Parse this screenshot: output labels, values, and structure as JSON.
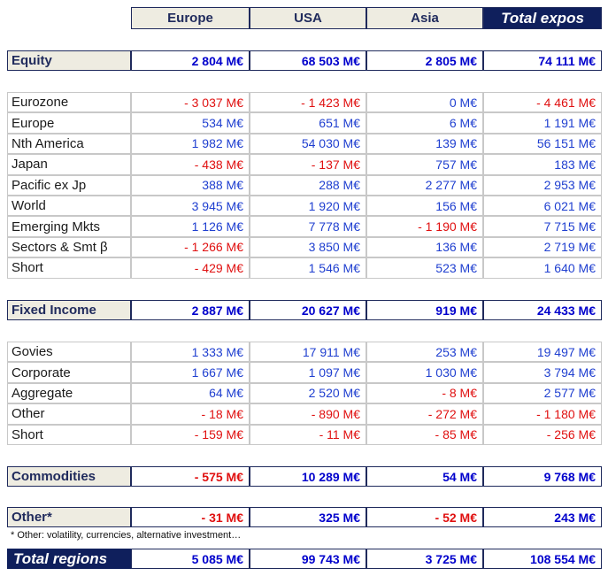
{
  "header": {
    "columns": [
      "Europe",
      "USA",
      "Asia",
      "Total expos"
    ]
  },
  "sections": [
    {
      "label": "Equity",
      "values": [
        "2 804 M€",
        "68 503 M€",
        "2 805 M€",
        "74 111 M€"
      ],
      "rows": [
        {
          "label": "Eurozone",
          "values": [
            "- 3 037 M€",
            "- 1 423 M€",
            "0 M€",
            "- 4 461 M€"
          ]
        },
        {
          "label": "Europe",
          "values": [
            "534 M€",
            "651 M€",
            "6 M€",
            "1 191 M€"
          ]
        },
        {
          "label": "Nth America",
          "values": [
            "1 982 M€",
            "54 030 M€",
            "139 M€",
            "56 151 M€"
          ]
        },
        {
          "label": "Japan",
          "values": [
            "- 438 M€",
            "- 137 M€",
            "757 M€",
            "183 M€"
          ]
        },
        {
          "label": "Pacific ex Jp",
          "values": [
            "388 M€",
            "288 M€",
            "2 277 M€",
            "2 953 M€"
          ]
        },
        {
          "label": "World",
          "values": [
            "3 945 M€",
            "1 920 M€",
            "156 M€",
            "6 021 M€"
          ]
        },
        {
          "label": "Emerging Mkts",
          "values": [
            "1 126 M€",
            "7 778 M€",
            "- 1 190 M€",
            "7 715 M€"
          ]
        },
        {
          "label": "Sectors & Smt β",
          "values": [
            "- 1 266 M€",
            "3 850 M€",
            "136 M€",
            "2 719 M€"
          ]
        },
        {
          "label": "Short",
          "values": [
            "- 429 M€",
            "1 546 M€",
            "523 M€",
            "1 640 M€"
          ]
        }
      ]
    },
    {
      "label": "Fixed Income",
      "values": [
        "2 887 M€",
        "20 627 M€",
        "919 M€",
        "24 433 M€"
      ],
      "rows": [
        {
          "label": "Govies",
          "values": [
            "1 333 M€",
            "17 911 M€",
            "253 M€",
            "19 497 M€"
          ]
        },
        {
          "label": "Corporate",
          "values": [
            "1 667 M€",
            "1 097 M€",
            "1 030 M€",
            "3 794 M€"
          ]
        },
        {
          "label": "Aggregate",
          "values": [
            "64 M€",
            "2 520 M€",
            "- 8 M€",
            "2 577 M€"
          ]
        },
        {
          "label": "Other",
          "values": [
            "- 18 M€",
            "- 890 M€",
            "- 272 M€",
            "- 1 180 M€"
          ]
        },
        {
          "label": "Short",
          "values": [
            "- 159 M€",
            "- 11 M€",
            "- 85 M€",
            "- 256 M€"
          ]
        }
      ]
    },
    {
      "label": "Commodities",
      "values": [
        "- 575 M€",
        "10 289 M€",
        "54 M€",
        "9 768 M€"
      ],
      "rows": []
    },
    {
      "label": "Other*",
      "values": [
        "- 31 M€",
        "325 M€",
        "- 52 M€",
        "243 M€"
      ],
      "rows": []
    }
  ],
  "footnote": "* Other: volatility, currencies, alternative investment…",
  "total": {
    "label": "Total regions",
    "values": [
      "5 085 M€",
      "99 743 M€",
      "3 725 M€",
      "108 554 M€"
    ]
  }
}
